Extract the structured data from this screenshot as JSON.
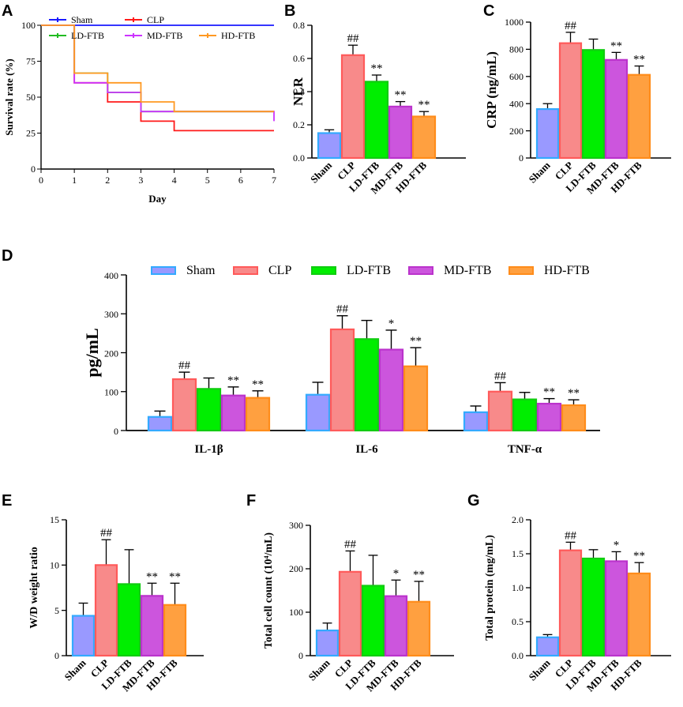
{
  "chart_data": [
    {
      "panel": "A",
      "type": "line",
      "step": true,
      "xlabel": "Day",
      "ylabel": "Survival rate (%)",
      "xlim": [
        0,
        7
      ],
      "ylim": [
        0,
        100
      ],
      "xticks": [
        "0",
        "1",
        "2",
        "3",
        "4",
        "5",
        "6",
        "7"
      ],
      "yticks": [
        "0",
        "25",
        "50",
        "75",
        "100"
      ],
      "series": [
        {
          "name": "Sham",
          "color": "#1a1aff",
          "x": [
            0,
            7
          ],
          "y": [
            100,
            100
          ]
        },
        {
          "name": "CLP",
          "color": "#ff1a1a",
          "x": [
            0,
            1,
            1,
            2,
            3,
            4,
            7
          ],
          "y": [
            100,
            100,
            60,
            46.7,
            33.3,
            26.7,
            26.7
          ]
        },
        {
          "name": "LD-FTB",
          "color": "#22bb22",
          "x": [
            0,
            1,
            1,
            2,
            3,
            7
          ],
          "y": [
            100,
            100,
            66.7,
            53.3,
            40,
            40
          ]
        },
        {
          "name": "MD-FTB",
          "color": "#cc33ff",
          "x": [
            0,
            1,
            1,
            2,
            3,
            7
          ],
          "y": [
            100,
            100,
            60,
            53.3,
            40,
            33.3
          ]
        },
        {
          "name": "HD-FTB",
          "color": "#ff9922",
          "x": [
            0,
            1,
            1,
            2,
            3,
            4,
            7
          ],
          "y": [
            100,
            100,
            66.7,
            60,
            46.7,
            40,
            40
          ]
        }
      ]
    },
    {
      "panel": "B",
      "type": "bar",
      "ylabel": "NLR",
      "ylim": [
        0,
        0.8
      ],
      "yticks": [
        "0.0",
        "0.2",
        "0.4",
        "0.6",
        "0.8"
      ],
      "categories": [
        "Sham",
        "CLP",
        "LD-FTB",
        "MD-FTB",
        "HD-FTB"
      ],
      "values": [
        0.15,
        0.62,
        0.46,
        0.31,
        0.25
      ],
      "errors": [
        0.02,
        0.06,
        0.04,
        0.03,
        0.03
      ],
      "sig": [
        "",
        "##",
        "**",
        "**",
        "**"
      ]
    },
    {
      "panel": "C",
      "type": "bar",
      "ylabel": "CRP (ng/mL)",
      "ylim": [
        0,
        1000
      ],
      "yticks": [
        "0",
        "200",
        "400",
        "600",
        "800",
        "1000"
      ],
      "categories": [
        "Sham",
        "CLP",
        "LD-FTB",
        "MD-FTB",
        "HD-FTB"
      ],
      "values": [
        360,
        845,
        795,
        722,
        612
      ],
      "errors": [
        40,
        80,
        80,
        55,
        65
      ],
      "sig": [
        "",
        "##",
        "",
        "**",
        "**"
      ]
    },
    {
      "panel": "D",
      "type": "bar",
      "ylabel": "pg/mL",
      "ylim": [
        0,
        400
      ],
      "yticks": [
        "0",
        "100",
        "200",
        "300",
        "400"
      ],
      "groups": [
        "IL-1β",
        "IL-6",
        "TNF-α"
      ],
      "legend": [
        "Sham",
        "CLP",
        "LD-FTB",
        "MD-FTB",
        "HD-FTB"
      ],
      "series": [
        {
          "name": "Sham",
          "values": [
            35,
            92,
            47
          ],
          "errors": [
            15,
            32,
            16
          ]
        },
        {
          "name": "CLP",
          "values": [
            132,
            260,
            100
          ],
          "errors": [
            18,
            35,
            23
          ]
        },
        {
          "name": "LD-FTB",
          "values": [
            107,
            235,
            80
          ],
          "errors": [
            28,
            48,
            18
          ]
        },
        {
          "name": "MD-FTB",
          "values": [
            90,
            208,
            69
          ],
          "errors": [
            22,
            50,
            13
          ]
        },
        {
          "name": "HD-FTB",
          "values": [
            84,
            165,
            65
          ],
          "errors": [
            18,
            48,
            14
          ]
        }
      ],
      "sig": [
        [
          "",
          "##",
          "",
          "**",
          "**"
        ],
        [
          "",
          "##",
          "",
          "*",
          "**"
        ],
        [
          "",
          "##",
          "",
          "**",
          "**"
        ]
      ]
    },
    {
      "panel": "E",
      "type": "bar",
      "ylabel": "W/D weight ratio",
      "ylim": [
        0,
        15
      ],
      "yticks": [
        "0",
        "5",
        "10",
        "15"
      ],
      "categories": [
        "Sham",
        "CLP",
        "LD-FTB",
        "MD-FTB",
        "HD-FTB"
      ],
      "values": [
        4.4,
        10.0,
        7.9,
        6.6,
        5.6
      ],
      "errors": [
        1.4,
        2.8,
        3.8,
        1.4,
        2.4
      ],
      "sig": [
        "",
        "##",
        "",
        "**",
        "**"
      ]
    },
    {
      "panel": "F",
      "type": "bar",
      "ylabel": "Total cell count (10⁴/mL)",
      "ylim": [
        0,
        300
      ],
      "yticks": [
        "0",
        "100",
        "200",
        "300"
      ],
      "categories": [
        "Sham",
        "CLP",
        "LD-FTB",
        "MD-FTB",
        "HD-FTB"
      ],
      "values": [
        58,
        193,
        161,
        137,
        124
      ],
      "errors": [
        17,
        48,
        70,
        37,
        47
      ],
      "sig": [
        "",
        "##",
        "",
        "*",
        "**"
      ]
    },
    {
      "panel": "G",
      "type": "bar",
      "ylabel": "Total protein  (mg/mL)",
      "ylim": [
        0,
        2.0
      ],
      "yticks": [
        "0.0",
        "0.5",
        "1.0",
        "1.5",
        "2.0"
      ],
      "categories": [
        "Sham",
        "CLP",
        "LD-FTB",
        "MD-FTB",
        "HD-FTB"
      ],
      "values": [
        0.27,
        1.55,
        1.43,
        1.39,
        1.21
      ],
      "errors": [
        0.04,
        0.12,
        0.13,
        0.14,
        0.16
      ],
      "sig": [
        "",
        "##",
        "",
        "*",
        "**"
      ]
    }
  ],
  "panel_labels": [
    "A",
    "B",
    "C",
    "D",
    "E",
    "F",
    "G"
  ],
  "colors": {
    "fill": [
      "#9999ff",
      "#f88a8a",
      "#00ee00",
      "#cc55dd",
      "#ffa040"
    ],
    "stroke": [
      "#33aaff",
      "#ff5a5a",
      "#11cc11",
      "#bb33cc",
      "#ff8c1a"
    ],
    "sig": "#444444"
  }
}
